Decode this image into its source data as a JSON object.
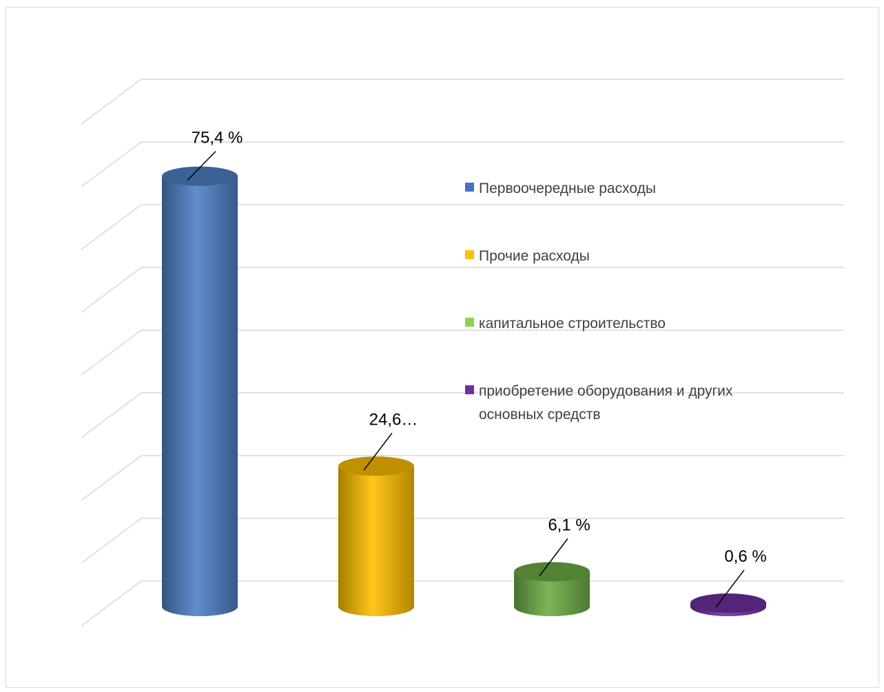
{
  "chart_data": {
    "type": "bar",
    "style": "3d-cylinder",
    "categories": [
      "Первоочередные расходы",
      "Прочие расходы",
      "капитальное строительство",
      "приобретение оборудования и других основных средств"
    ],
    "values": [
      75.4,
      24.6,
      6.1,
      0.6
    ],
    "data_labels": [
      "75,4 %",
      "24,6…",
      "6,1 %",
      "0,6 %"
    ],
    "colors": [
      "#4f81c7",
      "#ffc000",
      "#70ad47",
      "#7030a0"
    ],
    "legend": {
      "position": "right",
      "entries": [
        {
          "lines": [
            "Первоочередные расходы"
          ],
          "color": "#4472c4"
        },
        {
          "lines": [
            "Прочие расходы"
          ],
          "color": "#ffc000"
        },
        {
          "lines": [
            "капитальное строительство"
          ],
          "color": "#92d050"
        },
        {
          "lines": [
            "приобретение оборудования и других",
            "основных средств"
          ],
          "color": "#7030a0"
        }
      ]
    },
    "ylim": [
      0,
      80
    ],
    "gridlines": 9,
    "grid": true,
    "title": "",
    "xlabel": "",
    "ylabel": ""
  }
}
